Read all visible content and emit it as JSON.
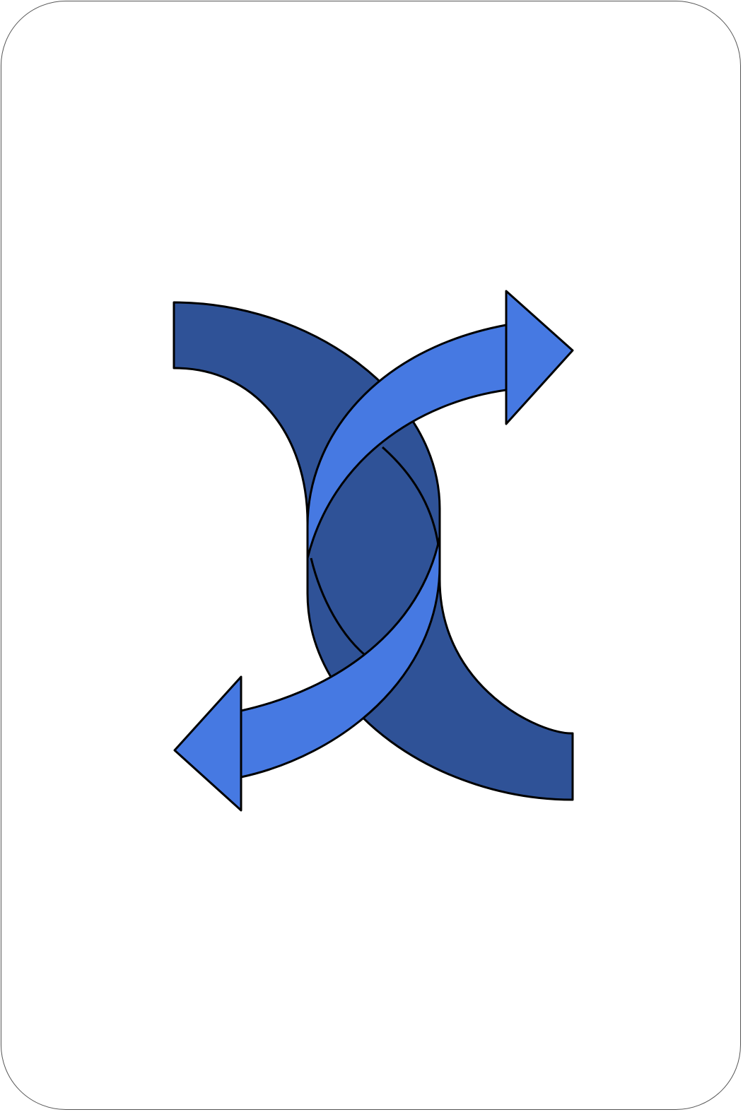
{
  "card": {
    "symbol_name": "swap-arrows-icon",
    "colors": {
      "card_background": "#ffffff",
      "card_border": "#555555",
      "outline": "#000000",
      "back_arrow": "#2f5297",
      "front_arrow": "#4679e2"
    }
  }
}
